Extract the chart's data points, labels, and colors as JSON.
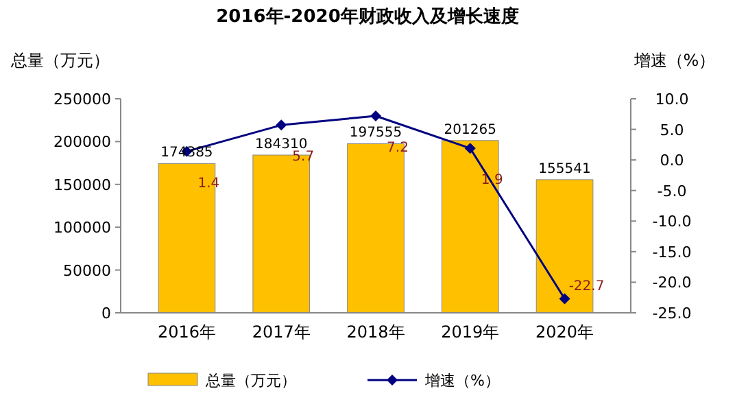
{
  "chart_data": {
    "type": "bar",
    "title": "2016年-2020年财政收入及增长速度",
    "ylabel": "总量（万元）",
    "y2label": "增速（%）",
    "categories": [
      "2016年",
      "2017年",
      "2018年",
      "2019年",
      "2020年"
    ],
    "series": [
      {
        "name": "总量（万元）",
        "color": "#ffc000",
        "values": [
          174385,
          184310,
          197555,
          201265,
          155541
        ]
      },
      {
        "name": "增速（%）",
        "type": "line",
        "axis": "y2",
        "color": "#000080",
        "values": [
          1.4,
          5.7,
          7.2,
          1.9,
          -22.7
        ]
      }
    ],
    "ylim": [
      0,
      250000
    ],
    "yticks": [
      0,
      50000,
      100000,
      150000,
      200000,
      250000
    ],
    "y2lim": [
      -25,
      10
    ],
    "y2ticks": [
      {
        "value": -25,
        "label": "-25.0"
      },
      {
        "value": -20,
        "label": "-20.0"
      },
      {
        "value": -15,
        "label": "-15.0"
      },
      {
        "value": -10,
        "label": "-10.0"
      },
      {
        "value": -5,
        "label": "-5.0"
      },
      {
        "value": 0,
        "label": "0.0"
      },
      {
        "value": 5,
        "label": "5.0"
      },
      {
        "value": 10,
        "label": "10.0"
      }
    ],
    "data_labels": true,
    "marker": "diamond",
    "legend": "bottom",
    "grid": false
  }
}
